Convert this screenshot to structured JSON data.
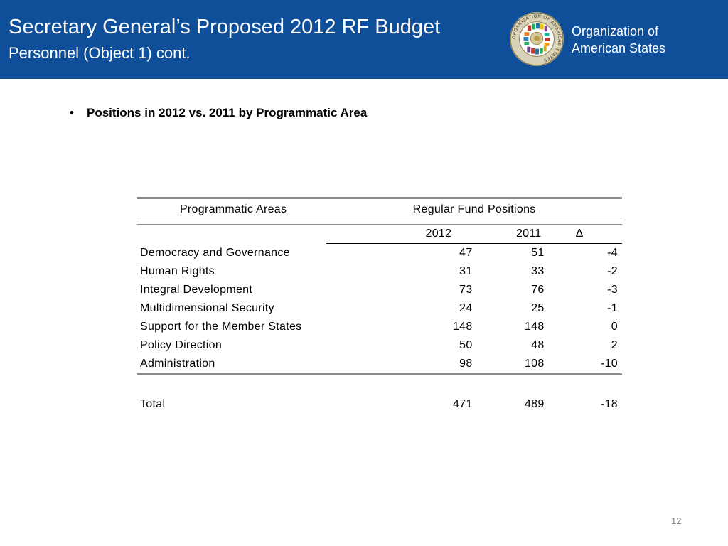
{
  "header": {
    "title": "Secretary General’s Proposed 2012 RF Budget",
    "subtitle": "Personnel (Object 1) cont.",
    "org_line1": "Organization of",
    "org_line2": "American States",
    "seal_text": "ORGANIZATION OF AMERICAN STATES",
    "brand_color": "#0f4f9a"
  },
  "bullet": {
    "text": "Positions in 2012 vs. 2011 by Programmatic Area"
  },
  "table": {
    "col_area": "Programmatic Areas",
    "col_group": "Regular Fund Positions",
    "col_2012": "2012",
    "col_2011": "2011",
    "col_delta": "Δ",
    "rows": [
      {
        "area": "Democracy and Governance",
        "y2012": "47",
        "y2011": "51",
        "delta": "-4"
      },
      {
        "area": "Human Rights",
        "y2012": "31",
        "y2011": "33",
        "delta": "-2"
      },
      {
        "area": "Integral Development",
        "y2012": "73",
        "y2011": "76",
        "delta": "-3"
      },
      {
        "area": "Multidimensional Security",
        "y2012": "24",
        "y2011": "25",
        "delta": "-1"
      },
      {
        "area": "Support for the Member States",
        "y2012": "148",
        "y2011": "148",
        "delta": "0"
      },
      {
        "area": "Policy Direction",
        "y2012": "50",
        "y2011": "48",
        "delta": "2"
      },
      {
        "area": "Administration",
        "y2012": "98",
        "y2011": "108",
        "delta": "-10"
      }
    ],
    "total": {
      "area": "Total",
      "y2012": "471",
      "y2011": "489",
      "delta": "-18"
    }
  },
  "page_number": "12"
}
